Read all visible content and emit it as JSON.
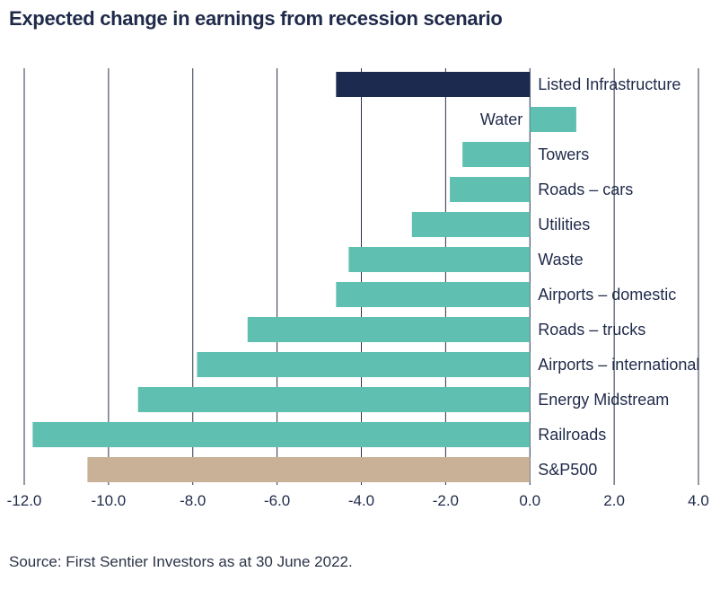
{
  "chart_data": {
    "type": "bar",
    "orientation": "horizontal",
    "title": "Expected change in earnings from recession scenario",
    "categories": [
      "Listed Infrastructure",
      "Water",
      "Towers",
      "Roads – cars",
      "Utilities",
      "Waste",
      "Airports – domestic",
      "Roads – trucks",
      "Airports – international",
      "Energy Midstream",
      "Railroads",
      "S&P500"
    ],
    "values": [
      -4.6,
      1.1,
      -1.6,
      -1.9,
      -2.8,
      -4.3,
      -4.6,
      -6.7,
      -7.9,
      -9.3,
      -11.8,
      -10.5
    ],
    "bar_colors": [
      "#1b2a4e",
      "#5fbfb0",
      "#5fbfb0",
      "#5fbfb0",
      "#5fbfb0",
      "#5fbfb0",
      "#5fbfb0",
      "#5fbfb0",
      "#5fbfb0",
      "#5fbfb0",
      "#5fbfb0",
      "#c8b196"
    ],
    "xlim": [
      -12.0,
      4.0
    ],
    "xticks": [
      -12.0,
      -10.0,
      -8.0,
      -6.0,
      -4.0,
      -2.0,
      0.0,
      2.0,
      4.0
    ],
    "xtick_labels": [
      "-12.0",
      "-10.0",
      "-8.0",
      "-6.0",
      "-4.0",
      "-2.0",
      "0.0",
      "2.0",
      "4.0"
    ],
    "grid": "vertical",
    "xlabel": "",
    "ylabel": ""
  },
  "source": "Source: First Sentier Investors as at 30 June 2022."
}
